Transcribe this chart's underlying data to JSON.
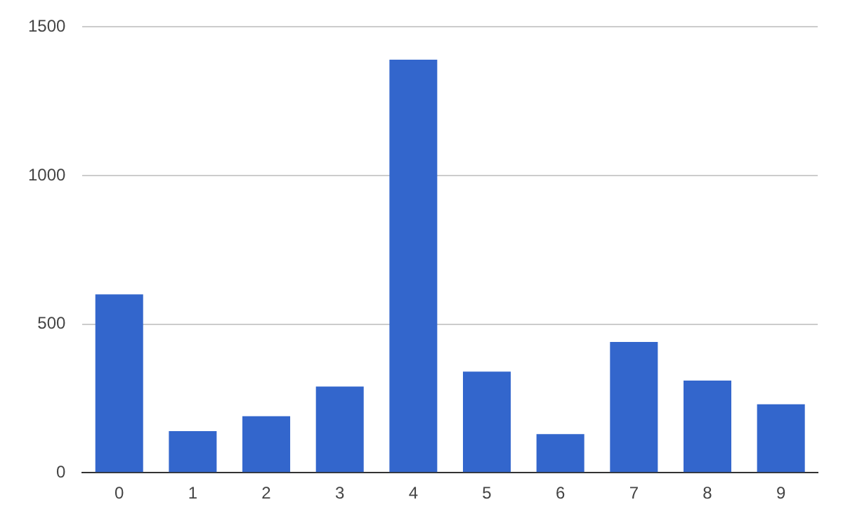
{
  "chart_data": {
    "type": "bar",
    "categories": [
      "0",
      "1",
      "2",
      "3",
      "4",
      "5",
      "6",
      "7",
      "8",
      "9"
    ],
    "values": [
      600,
      140,
      190,
      290,
      1390,
      340,
      130,
      440,
      310,
      230
    ],
    "color": "#3366cc",
    "ylim": [
      0,
      1500
    ],
    "yticks": [
      0,
      500,
      1000,
      1500
    ],
    "grid": "y",
    "legend": false
  }
}
